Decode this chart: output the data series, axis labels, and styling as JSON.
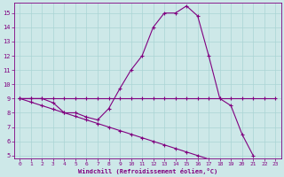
{
  "xlabel": "Windchill (Refroidissement éolien,°C)",
  "bg_color": "#cde8e8",
  "line_color": "#800080",
  "grid_color": "#aad4d4",
  "x_values": [
    0,
    1,
    2,
    3,
    4,
    5,
    6,
    7,
    8,
    9,
    10,
    11,
    12,
    13,
    14,
    15,
    16,
    17,
    18,
    19,
    20,
    21,
    22,
    23
  ],
  "y_flat": [
    9,
    9,
    9,
    9,
    9,
    9,
    9,
    9,
    9,
    9,
    9,
    9,
    9,
    9,
    9,
    9,
    9,
    9,
    9,
    9,
    9,
    9,
    9,
    9
  ],
  "y_curve": [
    9,
    9,
    9,
    8.7,
    8.0,
    8.0,
    7.7,
    7.5,
    8.3,
    9.7,
    11.0,
    12.0,
    14.0,
    15.0,
    15.0,
    15.5,
    14.8,
    12.0,
    9.0,
    8.5,
    6.5,
    5.0,
    null,
    null
  ],
  "y_diag": [
    9.0,
    8.75,
    8.5,
    8.25,
    8.0,
    7.75,
    7.5,
    7.25,
    7.0,
    6.75,
    6.5,
    6.25,
    6.0,
    5.75,
    5.5,
    5.25,
    5.0,
    4.75,
    null,
    null,
    null,
    null,
    null,
    null
  ],
  "ylim_min": 4.8,
  "ylim_max": 15.7,
  "xlim_min": -0.5,
  "xlim_max": 23.5,
  "yticks": [
    5,
    6,
    7,
    8,
    9,
    10,
    11,
    12,
    13,
    14,
    15
  ],
  "xticks": [
    0,
    1,
    2,
    3,
    4,
    5,
    6,
    7,
    8,
    9,
    10,
    11,
    12,
    13,
    14,
    15,
    16,
    17,
    18,
    19,
    20,
    21,
    22,
    23
  ]
}
